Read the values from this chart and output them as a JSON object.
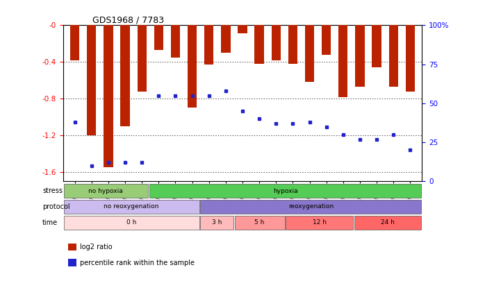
{
  "title": "GDS1968 / 7783",
  "samples": [
    "GSM16836",
    "GSM16837",
    "GSM16838",
    "GSM16839",
    "GSM16784",
    "GSM16814",
    "GSM16815",
    "GSM16816",
    "GSM16817",
    "GSM16818",
    "GSM16819",
    "GSM16821",
    "GSM16824",
    "GSM16826",
    "GSM16828",
    "GSM16830",
    "GSM16831",
    "GSM16832",
    "GSM16833",
    "GSM16834",
    "GSM16835"
  ],
  "log2_ratio": [
    -0.38,
    -1.2,
    -1.55,
    -1.1,
    -0.72,
    -0.27,
    -0.35,
    -0.9,
    -0.43,
    -0.3,
    -0.09,
    -0.42,
    -0.38,
    -0.42,
    -0.62,
    -0.32,
    -0.78,
    -0.67,
    -0.46,
    -0.67,
    -0.72
  ],
  "percentile": [
    38,
    10,
    12,
    12,
    12,
    55,
    55,
    55,
    55,
    58,
    45,
    40,
    37,
    37,
    38,
    35,
    30,
    27,
    27,
    30,
    20
  ],
  "bar_color": "#bb2200",
  "dot_color": "#2222cc",
  "ylim_left": [
    -1.7,
    0.0
  ],
  "ylim_right": [
    0,
    100
  ],
  "yticks_left": [
    0.0,
    -0.4,
    -0.8,
    -1.2,
    -1.6
  ],
  "yticks_right": [
    100,
    75,
    50,
    25,
    0
  ],
  "stress_groups": [
    {
      "label": "no hypoxia",
      "start": 0,
      "end": 5,
      "color": "#99cc77"
    },
    {
      "label": "hypoxia",
      "start": 5,
      "end": 21,
      "color": "#55cc55"
    }
  ],
  "protocol_groups": [
    {
      "label": "no reoxygenation",
      "start": 0,
      "end": 8,
      "color": "#ccbbee"
    },
    {
      "label": "reoxygenation",
      "start": 8,
      "end": 21,
      "color": "#8877cc"
    }
  ],
  "time_groups": [
    {
      "label": "0 h",
      "start": 0,
      "end": 8,
      "color": "#ffdddd"
    },
    {
      "label": "3 h",
      "start": 8,
      "end": 10,
      "color": "#ffbbbb"
    },
    {
      "label": "5 h",
      "start": 10,
      "end": 13,
      "color": "#ff9999"
    },
    {
      "label": "12 h",
      "start": 13,
      "end": 17,
      "color": "#ff7777"
    },
    {
      "label": "24 h",
      "start": 17,
      "end": 21,
      "color": "#ff6666"
    }
  ],
  "background_color": "#ffffff",
  "legend_items": [
    {
      "color": "#bb2200",
      "label": "log2 ratio"
    },
    {
      "color": "#2222cc",
      "label": "percentile rank within the sample"
    }
  ]
}
